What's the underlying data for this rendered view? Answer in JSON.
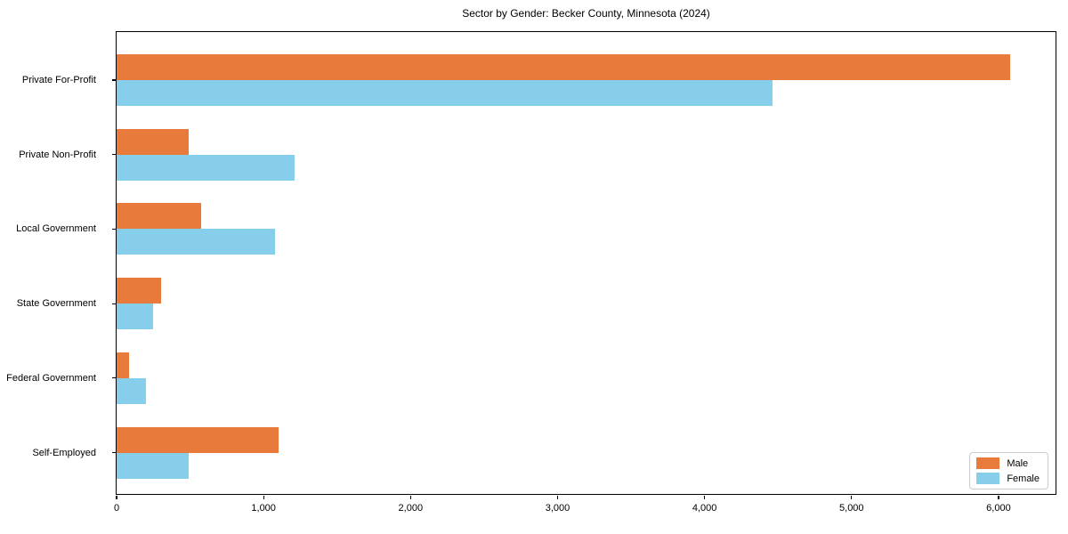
{
  "chart_data": {
    "type": "bar",
    "orientation": "horizontal",
    "title": "Sector by Gender: Becker County, Minnesota (2024)",
    "categories": [
      "Private For-Profit",
      "Private Non-Profit",
      "Local Government",
      "State Government",
      "Federal Government",
      "Self-Employed"
    ],
    "series": [
      {
        "name": "Male",
        "color": "#E87A3C",
        "values": [
          6080,
          490,
          575,
          300,
          85,
          1100
        ]
      },
      {
        "name": "Female",
        "color": "#87CEEB",
        "values": [
          4460,
          1210,
          1080,
          250,
          200,
          490
        ]
      }
    ],
    "xlabel": "",
    "ylabel": "",
    "xlim": [
      0,
      6400
    ],
    "xticks": [
      0,
      1000,
      2000,
      3000,
      4000,
      5000,
      6000
    ],
    "xtick_labels": [
      "0",
      "1,000",
      "2,000",
      "3,000",
      "4,000",
      "5,000",
      "6,000"
    ],
    "legend_position": "lower right",
    "grid": false,
    "frame_color": "#000000",
    "background_color": "#ffffff"
  }
}
